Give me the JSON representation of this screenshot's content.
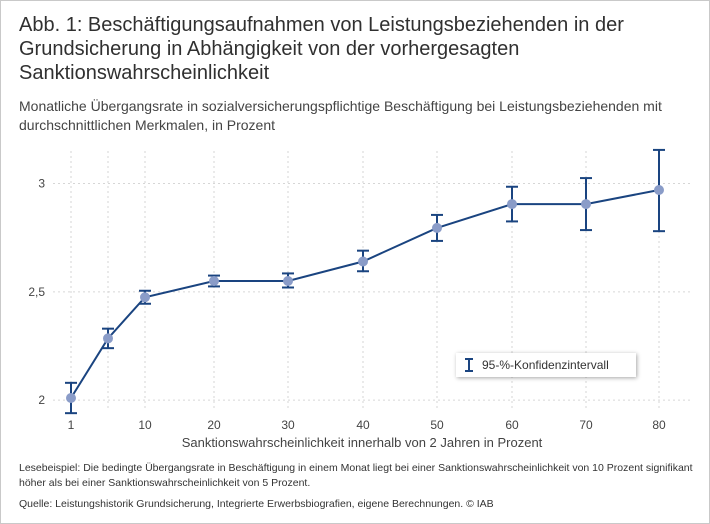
{
  "header": {
    "title": "Abb. 1: Beschäftigungsaufnahmen von Leistungsbeziehenden in der Grundsicherung in Abhängigkeit von der vorhergesagten Sanktionswahrscheinlichkeit",
    "subtitle": "Monatliche Übergangsrate in sozialversicherungspflichtige Beschäftigung bei Leistungsbeziehenden mit durchschnittlichen Merkmalen, in Prozent"
  },
  "chart_data": {
    "type": "line",
    "title": "Abb. 1: Beschäftigungsaufnahmen von Leistungsbeziehenden in der Grundsicherung in Abhängigkeit von der vorhergesagten Sanktionswahrscheinlichkeit",
    "xlabel": "Sanktionswahrscheinlichkeit innerhalb von 2 Jahren in Prozent",
    "ylabel": "",
    "categories": [
      "1",
      "5",
      "10",
      "20",
      "30",
      "40",
      "50",
      "60",
      "70",
      "80"
    ],
    "x_tick_labels": [
      "1",
      "10",
      "20",
      "30",
      "40",
      "50",
      "60",
      "70",
      "80"
    ],
    "y_tick_labels": [
      "2",
      "2,5",
      "3"
    ],
    "y_ticks": [
      2,
      2.5,
      3
    ],
    "ylim": [
      1.95,
      3.15
    ],
    "grid": true,
    "series": [
      {
        "name": "Übergangsrate",
        "values": [
          2.01,
          2.285,
          2.475,
          2.55,
          2.55,
          2.64,
          2.795,
          2.905,
          2.905,
          2.97
        ],
        "ci_low": [
          1.94,
          2.24,
          2.445,
          2.525,
          2.52,
          2.595,
          2.735,
          2.825,
          2.785,
          2.78
        ],
        "ci_high": [
          2.08,
          2.33,
          2.505,
          2.575,
          2.585,
          2.69,
          2.855,
          2.985,
          3.025,
          3.155
        ]
      }
    ],
    "legend": {
      "label": "95-%-Konfidenzintervall",
      "position": "bottom-right"
    }
  },
  "footer": {
    "note": "Lesebeispiel: Die bedingte Übergangsrate in Beschäftigung in einem Monat liegt bei einer Sanktionswahrscheinlichkeit von 10 Prozent signifikant höher als bei einer Sanktionswahrscheinlichkeit von 5 Prozent.",
    "source": "Quelle: Leistungshistorik Grundsicherung, Integrierte Erwerbsbiografien, eigene Berechnungen. © IAB"
  },
  "colors": {
    "line": "#1a4480",
    "marker": "#8a9cc8",
    "grid": "#d6d6d6"
  }
}
